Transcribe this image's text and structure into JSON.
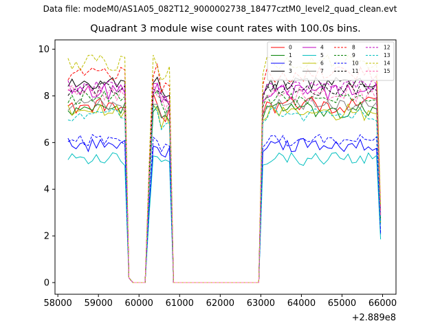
{
  "suptitle": "Data file: modeM0/AS1A05_082T12_9000002738_18477cztM0_level2_quad_clean.evt",
  "chart_data": {
    "type": "line",
    "title": "Quadrant 3 module wise count rates with 100.0s bins.",
    "xlabel": "",
    "ylabel": "",
    "x_offset_label": "+2.889e8",
    "xlim": [
      57930,
      66330
    ],
    "ylim": [
      -0.5,
      10.4
    ],
    "xticks": [
      58000,
      59000,
      60000,
      61000,
      62000,
      63000,
      64000,
      65000,
      66000
    ],
    "yticks": [
      0,
      2,
      4,
      6,
      8,
      10
    ],
    "legend_position": "top-right",
    "legend_columns": 4,
    "grid": false,
    "series": [
      {
        "name": "0",
        "color": "#ff0000",
        "dash": "solid",
        "level": 7.6,
        "amp": 0.35
      },
      {
        "name": "1",
        "color": "#008000",
        "dash": "solid",
        "level": 7.4,
        "amp": 0.35
      },
      {
        "name": "2",
        "color": "#0000ff",
        "dash": "solid",
        "level": 5.9,
        "amp": 0.3
      },
      {
        "name": "3",
        "color": "#000000",
        "dash": "solid",
        "level": 8.5,
        "amp": 0.3
      },
      {
        "name": "4",
        "color": "#bf00bf",
        "dash": "solid",
        "level": 8.2,
        "amp": 0.35
      },
      {
        "name": "5",
        "color": "#00bfbf",
        "dash": "solid",
        "level": 5.3,
        "amp": 0.3
      },
      {
        "name": "6",
        "color": "#bfbf00",
        "dash": "solid",
        "level": 7.3,
        "amp": 0.35
      },
      {
        "name": "7",
        "color": "#808080",
        "dash": "solid",
        "level": 7.6,
        "amp": 0.3
      },
      {
        "name": "8",
        "color": "#ff0000",
        "dash": "dashed",
        "level": 8.9,
        "amp": 0.35
      },
      {
        "name": "9",
        "color": "#008000",
        "dash": "dashed",
        "level": 7.9,
        "amp": 0.3
      },
      {
        "name": "10",
        "color": "#0000ff",
        "dash": "dashed",
        "level": 6.1,
        "amp": 0.25
      },
      {
        "name": "11",
        "color": "#000000",
        "dash": "dashed",
        "level": 8.3,
        "amp": 0.3
      },
      {
        "name": "12",
        "color": "#bf00bf",
        "dash": "dashed",
        "level": 8.4,
        "amp": 0.35
      },
      {
        "name": "13",
        "color": "#00bfbf",
        "dash": "dashed",
        "level": 7.2,
        "amp": 0.3
      },
      {
        "name": "14",
        "color": "#bfbf00",
        "dash": "dashed",
        "level": 9.4,
        "amp": 0.35
      },
      {
        "name": "15",
        "color": "#ff69b4",
        "dash": "dashed",
        "level": 8.1,
        "amp": 0.35
      }
    ],
    "segments": [
      {
        "x_start": 58250,
        "x_end": 59750,
        "shape": "flat"
      },
      {
        "x_start": 59750,
        "x_end": 60250,
        "shape": "drop_to_zero"
      },
      {
        "x_start": 60250,
        "x_end": 60850,
        "shape": "short_burst"
      },
      {
        "x_start": 60850,
        "x_end": 62950,
        "shape": "zero"
      },
      {
        "x_start": 62950,
        "x_end": 66000,
        "shape": "ramp_then_flat"
      }
    ]
  }
}
